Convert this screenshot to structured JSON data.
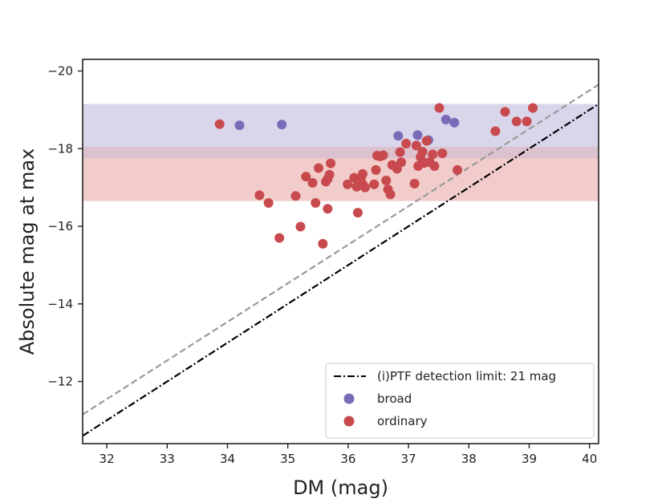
{
  "chart_data": {
    "type": "scatter",
    "title": "",
    "xlabel": "DM (mag)",
    "ylabel": "Absolute mag at max",
    "xlim": [
      31.6,
      40.15
    ],
    "ylim": [
      -10.4,
      -20.3
    ],
    "x_ticks": [
      32,
      33,
      34,
      35,
      36,
      37,
      38,
      39,
      40
    ],
    "y_ticks": [
      -12,
      -14,
      -16,
      -18,
      -20
    ],
    "y_tick_labels": [
      "−12",
      "−14",
      "−16",
      "−18",
      "−20"
    ],
    "bands": [
      {
        "name": "broad-range",
        "y1": -18.05,
        "y2": -19.15,
        "color": "#d9d6ec"
      },
      {
        "name": "ordinary-range",
        "y1": -16.65,
        "y2": -18.05,
        "color": "#f1cccb"
      },
      {
        "name": "overlap",
        "y1": -17.75,
        "y2": -18.05,
        "color": "#dcc1cf"
      }
    ],
    "lines": [
      {
        "name": "detection-limit",
        "label": "(i)PTF detection limit: 21 mag",
        "style": "dashdot",
        "color": "#000000",
        "x": [
          31.6,
          40.15
        ],
        "y": [
          -10.6,
          -19.15
        ]
      },
      {
        "name": "gray-dashed",
        "label": "",
        "style": "dashed",
        "color": "#999999",
        "x": [
          31.6,
          40.15
        ],
        "y": [
          -11.15,
          -19.65
        ]
      }
    ],
    "series": [
      {
        "name": "broad",
        "color": "#7a6bb8",
        "points": [
          [
            34.2,
            -18.6
          ],
          [
            34.9,
            -18.62
          ],
          [
            36.83,
            -18.33
          ],
          [
            37.15,
            -18.35
          ],
          [
            37.33,
            -18.22
          ],
          [
            37.62,
            -18.75
          ],
          [
            37.76,
            -18.67
          ]
        ]
      },
      {
        "name": "ordinary",
        "color": "#c94a4e",
        "points": [
          [
            33.87,
            -18.63
          ],
          [
            34.53,
            -16.8
          ],
          [
            34.68,
            -16.6
          ],
          [
            34.86,
            -15.7
          ],
          [
            35.13,
            -16.78
          ],
          [
            35.21,
            -15.99
          ],
          [
            35.3,
            -17.28
          ],
          [
            35.41,
            -17.12
          ],
          [
            35.46,
            -16.6
          ],
          [
            35.51,
            -17.5
          ],
          [
            35.58,
            -15.55
          ],
          [
            35.63,
            -17.15
          ],
          [
            35.66,
            -17.22
          ],
          [
            35.66,
            -16.45
          ],
          [
            35.69,
            -17.33
          ],
          [
            35.71,
            -17.62
          ],
          [
            35.99,
            -17.08
          ],
          [
            36.1,
            -17.25
          ],
          [
            36.14,
            -17.02
          ],
          [
            36.16,
            -16.35
          ],
          [
            36.21,
            -17.23
          ],
          [
            36.24,
            -17.08
          ],
          [
            36.24,
            -17.35
          ],
          [
            36.28,
            -17.0
          ],
          [
            36.43,
            -17.08
          ],
          [
            36.46,
            -17.45
          ],
          [
            36.48,
            -17.82
          ],
          [
            36.53,
            -17.8
          ],
          [
            36.58,
            -17.83
          ],
          [
            36.63,
            -17.18
          ],
          [
            36.66,
            -16.95
          ],
          [
            36.7,
            -16.82
          ],
          [
            36.73,
            -17.58
          ],
          [
            36.81,
            -17.48
          ],
          [
            36.86,
            -17.91
          ],
          [
            36.88,
            -17.65
          ],
          [
            36.96,
            -18.13
          ],
          [
            37.1,
            -17.1
          ],
          [
            37.13,
            -18.08
          ],
          [
            37.16,
            -17.55
          ],
          [
            37.2,
            -17.78
          ],
          [
            37.23,
            -17.92
          ],
          [
            37.26,
            -17.63
          ],
          [
            37.3,
            -18.2
          ],
          [
            37.35,
            -17.65
          ],
          [
            37.43,
            -17.55
          ],
          [
            37.51,
            -19.05
          ],
          [
            37.56,
            -17.88
          ],
          [
            37.81,
            -17.45
          ],
          [
            37.4,
            -17.85
          ],
          [
            38.44,
            -18.45
          ],
          [
            38.6,
            -18.95
          ],
          [
            38.79,
            -18.7
          ],
          [
            38.96,
            -18.7
          ],
          [
            39.06,
            -19.05
          ]
        ]
      }
    ],
    "legend": {
      "position": "lower-right",
      "entries": [
        {
          "label": "(i)PTF detection limit: 21 mag",
          "marker": "dashdot-line",
          "color": "#000000"
        },
        {
          "label": "broad",
          "marker": "circle",
          "color": "#7a6bb8"
        },
        {
          "label": "ordinary",
          "marker": "circle",
          "color": "#c94a4e"
        }
      ]
    }
  }
}
